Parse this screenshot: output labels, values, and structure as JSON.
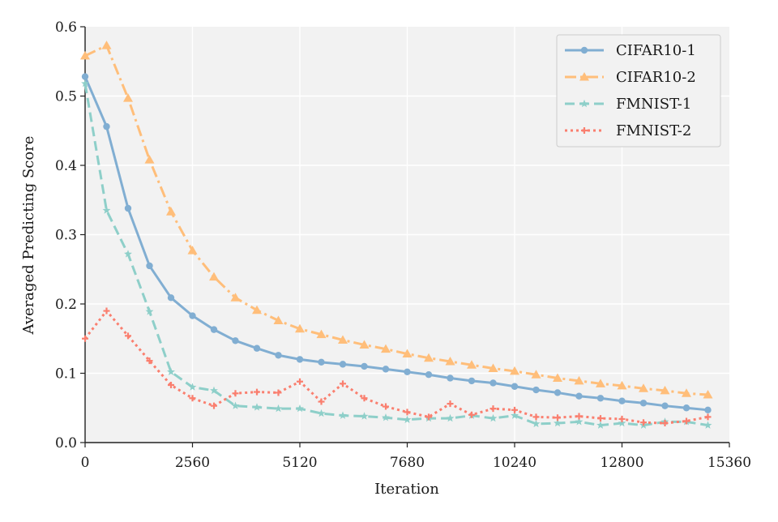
{
  "chart_data": {
    "type": "line",
    "xlabel": "Iteration",
    "ylabel": "Averaged Predicting Score",
    "xlim": [
      0,
      15360
    ],
    "ylim": [
      0,
      0.6
    ],
    "xticks": [
      0,
      2560,
      5120,
      7680,
      10240,
      12800,
      15360
    ],
    "yticks": [
      "0.0",
      "0.1",
      "0.2",
      "0.3",
      "0.4",
      "0.5",
      "0.6"
    ],
    "grid": true,
    "legend_position": "top-right",
    "x": [
      0,
      512,
      1024,
      1536,
      2048,
      2560,
      3072,
      3584,
      4096,
      4608,
      5120,
      5632,
      6144,
      6656,
      7168,
      7680,
      8192,
      8704,
      9216,
      9728,
      10240,
      10752,
      11264,
      11776,
      12288,
      12800,
      13312,
      13824,
      14336,
      14848
    ],
    "series": [
      {
        "name": "CIFAR10-1",
        "color": "#81aed2",
        "marker": "circle",
        "dash": "solid",
        "values": [
          0.528,
          0.456,
          0.338,
          0.255,
          0.209,
          0.183,
          0.163,
          0.147,
          0.136,
          0.126,
          0.12,
          0.116,
          0.113,
          0.11,
          0.106,
          0.102,
          0.098,
          0.093,
          0.089,
          0.086,
          0.081,
          0.076,
          0.072,
          0.067,
          0.064,
          0.06,
          0.057,
          0.053,
          0.05,
          0.047
        ]
      },
      {
        "name": "CIFAR10-2",
        "color": "#ffbe7a",
        "marker": "triangle",
        "dash": "dashdot",
        "values": [
          0.558,
          0.573,
          0.497,
          0.408,
          0.333,
          0.277,
          0.239,
          0.209,
          0.191,
          0.176,
          0.164,
          0.156,
          0.148,
          0.141,
          0.135,
          0.128,
          0.122,
          0.117,
          0.112,
          0.107,
          0.103,
          0.098,
          0.093,
          0.089,
          0.085,
          0.082,
          0.078,
          0.075,
          0.071,
          0.069
        ]
      },
      {
        "name": "FMNIST-1",
        "color": "#8ecfc9",
        "marker": "star",
        "dash": "dashed",
        "values": [
          0.518,
          0.335,
          0.272,
          0.189,
          0.102,
          0.08,
          0.075,
          0.053,
          0.051,
          0.049,
          0.049,
          0.042,
          0.039,
          0.038,
          0.036,
          0.033,
          0.035,
          0.035,
          0.039,
          0.035,
          0.039,
          0.027,
          0.028,
          0.03,
          0.025,
          0.028,
          0.025,
          0.03,
          0.03,
          0.025
        ]
      },
      {
        "name": "FMNIST-2",
        "color": "#fa7f6f",
        "marker": "plus",
        "dash": "dotted",
        "values": [
          0.15,
          0.19,
          0.154,
          0.118,
          0.083,
          0.064,
          0.053,
          0.071,
          0.073,
          0.072,
          0.088,
          0.059,
          0.085,
          0.064,
          0.052,
          0.044,
          0.037,
          0.056,
          0.04,
          0.049,
          0.047,
          0.037,
          0.036,
          0.038,
          0.035,
          0.034,
          0.029,
          0.028,
          0.031,
          0.037
        ]
      }
    ]
  }
}
